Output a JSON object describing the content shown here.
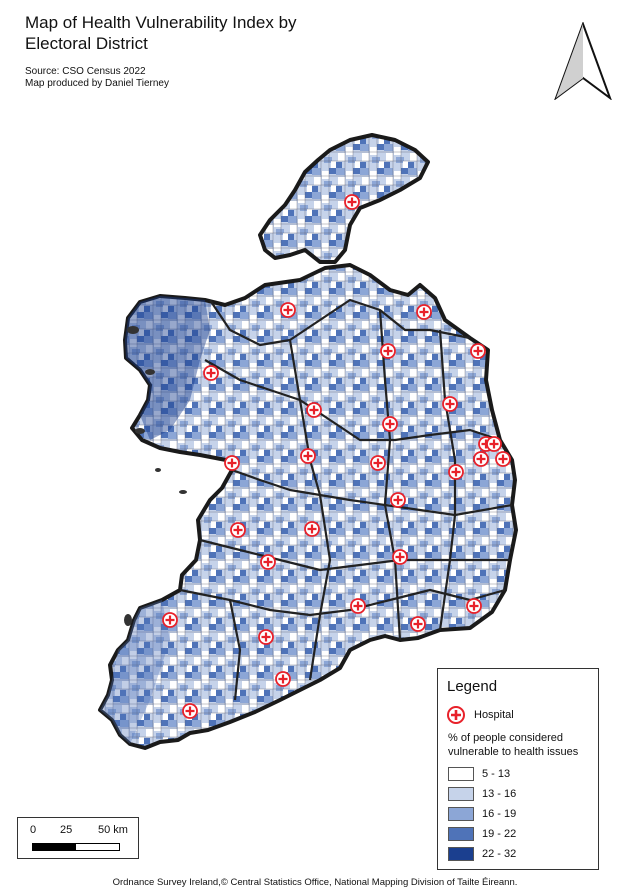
{
  "title": "Map of Health Vulnerability Index by Electoral District",
  "source": "Source: CSO Census 2022",
  "author": "Map produced by Daniel Tierney",
  "legend": {
    "title": "Legend",
    "hospital_label": "Hospital",
    "variable_label": "% of people considered vulnerable to health issues",
    "classes": [
      {
        "label": "5 - 13",
        "color": "#ffffff"
      },
      {
        "label": "13 - 16",
        "color": "#c6d3ea"
      },
      {
        "label": "16 - 19",
        "color": "#8ca6d6"
      },
      {
        "label": "19 - 22",
        "color": "#4f73b8"
      },
      {
        "label": "22 - 32",
        "color": "#1b3f8f"
      }
    ]
  },
  "scalebar": {
    "labels": [
      "0",
      "25",
      "50 km"
    ]
  },
  "attribution": "Ordnance Survey Ireland,© Central Statistics Office, National Mapping Division of Tailte Éireann.",
  "colors": {
    "hospital": "#e8212a",
    "boundary": "#222222"
  }
}
